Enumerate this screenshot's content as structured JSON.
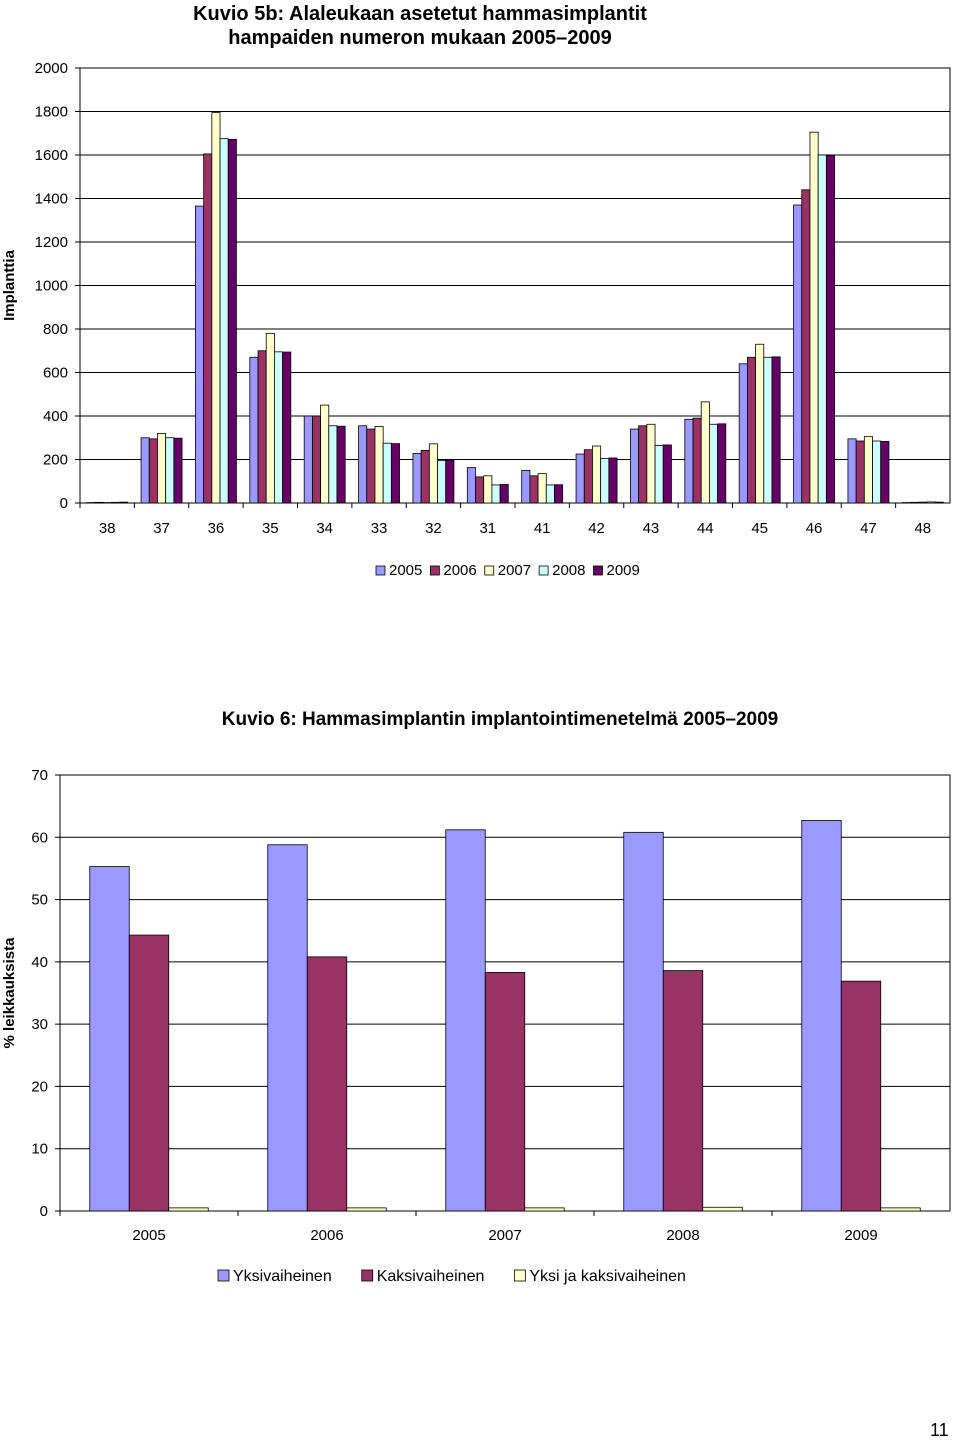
{
  "page": {
    "number": "11"
  },
  "chart_data": [
    {
      "type": "bar",
      "title_line1": "Kuvio 5b: Alaleukaan asetetut  hammasimplantit",
      "title_line2": "hampaiden numeron mukaan 2005–2009",
      "ylabel": "Implanttia",
      "xlabel": "",
      "ylim": [
        0,
        2000
      ],
      "yticks": [
        "0",
        "200",
        "400",
        "600",
        "800",
        "1000",
        "1200",
        "1400",
        "1600",
        "1800",
        "2000"
      ],
      "categories": [
        "38",
        "37",
        "36",
        "35",
        "34",
        "33",
        "32",
        "31",
        "41",
        "42",
        "43",
        "44",
        "45",
        "46",
        "47",
        "48"
      ],
      "legend_position": "bottom",
      "series": [
        {
          "name": "2005",
          "color": "#9999FF",
          "values": [
            2,
            300,
            1365,
            670,
            400,
            355,
            228,
            163,
            150,
            225,
            340,
            385,
            640,
            1370,
            295,
            2
          ]
        },
        {
          "name": "2006",
          "color": "#993366",
          "values": [
            3,
            295,
            1605,
            700,
            400,
            340,
            242,
            120,
            125,
            245,
            355,
            390,
            670,
            1440,
            285,
            3
          ]
        },
        {
          "name": "2007",
          "color": "#FFFFCC",
          "values": [
            2,
            320,
            1795,
            780,
            450,
            352,
            272,
            125,
            135,
            262,
            362,
            465,
            730,
            1705,
            305,
            4
          ]
        },
        {
          "name": "2008",
          "color": "#CCFFFF",
          "values": [
            3,
            300,
            1675,
            695,
            355,
            275,
            195,
            83,
            83,
            205,
            265,
            362,
            670,
            1600,
            285,
            5
          ]
        },
        {
          "name": "2009",
          "color": "#660066",
          "values": [
            4,
            298,
            1672,
            694,
            353,
            273,
            197,
            85,
            84,
            207,
            267,
            364,
            672,
            1598,
            283,
            4
          ]
        }
      ]
    },
    {
      "type": "bar",
      "title": "Kuvio  6: Hammasimplantin implantointimenetelmä  2005–2009",
      "ylabel": "% leikkauksista",
      "xlabel": "",
      "ylim": [
        0,
        70
      ],
      "yticks": [
        "0",
        "10",
        "20",
        "30",
        "40",
        "50",
        "60",
        "70"
      ],
      "categories": [
        "2005",
        "2006",
        "2007",
        "2008",
        "2009"
      ],
      "legend_position": "bottom",
      "series": [
        {
          "name": "Yksivaiheinen",
          "color": "#9999FF",
          "values": [
            55.3,
            58.8,
            61.2,
            60.8,
            62.7
          ]
        },
        {
          "name": "Kaksivaiheinen",
          "color": "#993366",
          "values": [
            44.3,
            40.8,
            38.3,
            38.6,
            36.9
          ]
        },
        {
          "name": "Yksi ja kaksivaiheinen",
          "color": "#FFFFCC",
          "values": [
            0.5,
            0.5,
            0.5,
            0.6,
            0.5
          ]
        }
      ]
    }
  ]
}
